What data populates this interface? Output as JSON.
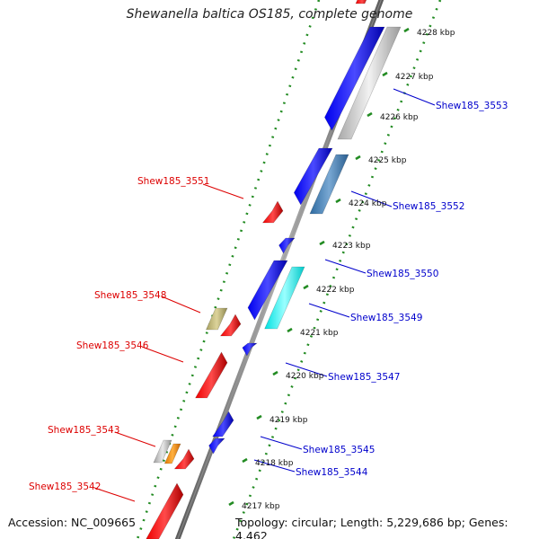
{
  "title": "Shewanella baltica OS185, complete genome",
  "footer": {
    "accession": "Accession: NC_009665",
    "topology": "Topology: circular; Length: 5,229,686 bp; Genes: 4,462"
  },
  "kbp_labels": [
    "4228 kbp",
    "4227 kbp",
    "4226 kbp",
    "4225 kbp",
    "4224 kbp",
    "4223 kbp",
    "4222 kbp",
    "4221 kbp",
    "4220 kbp",
    "4219 kbp",
    "4218 kbp",
    "4217 kbp"
  ],
  "gene_labels_left": [
    "Shew185_3551",
    "Shew185_3548",
    "Shew185_3546",
    "Shew185_3543",
    "Shew185_3542"
  ],
  "gene_labels_right": [
    "Shew185_3553",
    "Shew185_3552",
    "Shew185_3550",
    "Shew185_3549",
    "Shew185_3547",
    "Shew185_3545",
    "Shew185_3544"
  ],
  "colors": {
    "label_left": "#dd0000",
    "label_right": "#0000cc",
    "tick_green": "#228b22",
    "backbone": "#888888"
  }
}
